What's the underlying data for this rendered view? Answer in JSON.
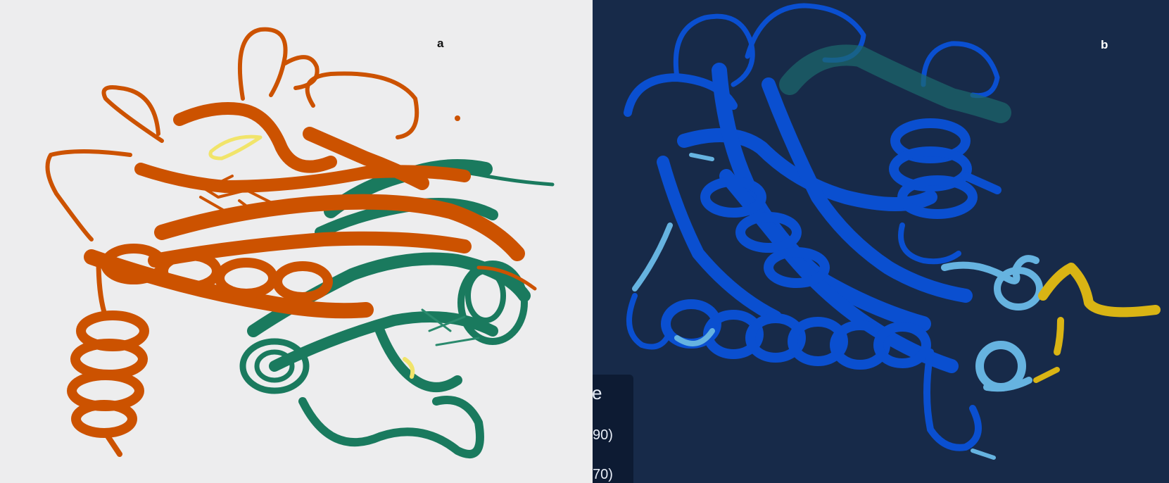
{
  "panel_a": {
    "label": "a",
    "colors": {
      "background": "#ededee",
      "chain_1": "#cc5200",
      "chain_2": "#1a7a5e",
      "highlight": "#f1e46a"
    }
  },
  "panel_b": {
    "label": "b",
    "colors": {
      "background": "#172a49",
      "very_high": "#0a4fd0",
      "confident": "#66b3e0",
      "low": "#d9b414"
    },
    "legend_fragment": {
      "heading": "e",
      "row_1": "90)",
      "row_2": "70)"
    }
  }
}
